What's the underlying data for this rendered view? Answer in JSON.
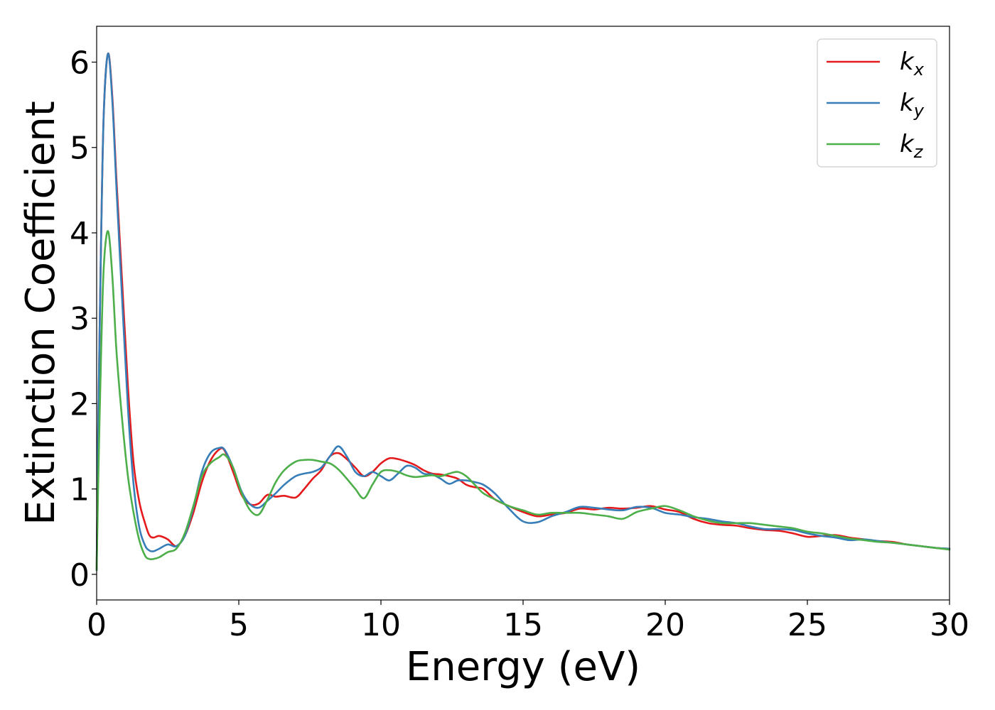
{
  "chart_data": {
    "type": "line",
    "title": "",
    "xlabel": "Energy (eV)",
    "ylabel": "Extinction Coefficient",
    "xlim": [
      0,
      30
    ],
    "ylim": [
      -0.3,
      6.42
    ],
    "x_ticks": [
      0,
      5,
      10,
      15,
      20,
      25,
      30
    ],
    "x_tick_labels": [
      "0",
      "5",
      "10",
      "15",
      "20",
      "25",
      "30"
    ],
    "y_ticks": [
      0,
      1,
      2,
      3,
      4,
      5,
      6
    ],
    "y_tick_labels": [
      "0",
      "1",
      "2",
      "3",
      "4",
      "5",
      "6"
    ],
    "grid": false,
    "legend_position": "top-right",
    "series": [
      {
        "name": "k_x",
        "legend_base": "k",
        "legend_sub": "x",
        "color": "#e41a1c",
        "x": [
          0,
          0.05,
          0.15,
          0.25,
          0.4,
          0.55,
          0.7,
          0.9,
          1.1,
          1.3,
          1.5,
          1.7,
          1.85,
          2.0,
          2.2,
          2.5,
          2.8,
          3.1,
          3.4,
          3.7,
          4.0,
          4.3,
          4.5,
          4.8,
          5.1,
          5.4,
          5.7,
          6.0,
          6.3,
          6.6,
          7.0,
          7.3,
          7.6,
          7.9,
          8.2,
          8.5,
          8.8,
          9.1,
          9.4,
          9.7,
          10.0,
          10.3,
          10.6,
          10.9,
          11.2,
          11.5,
          11.8,
          12.1,
          12.4,
          12.7,
          13.0,
          13.3,
          13.6,
          14.0,
          14.5,
          15.0,
          15.5,
          16.0,
          16.5,
          17.0,
          17.5,
          18.0,
          18.5,
          19.0,
          19.5,
          20.0,
          20.5,
          21.0,
          21.5,
          22.0,
          22.5,
          23.0,
          23.5,
          24.0,
          24.5,
          25.0,
          25.5,
          26.0,
          26.5,
          27.0,
          27.5,
          28.0,
          28.5,
          29.0,
          29.5,
          30.0
        ],
        "values": [
          0.05,
          1.6,
          3.8,
          5.4,
          6.1,
          5.6,
          4.6,
          3.4,
          2.2,
          1.3,
          0.85,
          0.6,
          0.46,
          0.43,
          0.45,
          0.41,
          0.33,
          0.45,
          0.72,
          1.08,
          1.33,
          1.46,
          1.45,
          1.2,
          0.93,
          0.82,
          0.83,
          0.93,
          0.91,
          0.92,
          0.9,
          1.0,
          1.12,
          1.22,
          1.38,
          1.42,
          1.35,
          1.25,
          1.15,
          1.2,
          1.3,
          1.36,
          1.35,
          1.32,
          1.28,
          1.22,
          1.18,
          1.17,
          1.15,
          1.12,
          1.05,
          1.02,
          1.0,
          0.88,
          0.8,
          0.73,
          0.68,
          0.7,
          0.72,
          0.77,
          0.76,
          0.78,
          0.77,
          0.78,
          0.8,
          0.76,
          0.73,
          0.65,
          0.6,
          0.58,
          0.57,
          0.54,
          0.52,
          0.51,
          0.48,
          0.44,
          0.45,
          0.46,
          0.43,
          0.41,
          0.39,
          0.38,
          0.35,
          0.33,
          0.31,
          0.3
        ]
      },
      {
        "name": "k_y",
        "legend_base": "k",
        "legend_sub": "y",
        "color": "#377eb8",
        "x": [
          0,
          0.05,
          0.15,
          0.25,
          0.4,
          0.55,
          0.7,
          0.9,
          1.1,
          1.3,
          1.5,
          1.7,
          1.85,
          2.0,
          2.2,
          2.5,
          2.8,
          3.1,
          3.4,
          3.7,
          4.0,
          4.3,
          4.5,
          4.8,
          5.1,
          5.4,
          5.7,
          6.0,
          6.3,
          6.6,
          7.0,
          7.3,
          7.6,
          7.9,
          8.2,
          8.5,
          8.8,
          9.1,
          9.4,
          9.7,
          10.0,
          10.3,
          10.6,
          10.9,
          11.2,
          11.5,
          11.8,
          12.1,
          12.4,
          12.7,
          13.0,
          13.3,
          13.6,
          14.0,
          14.5,
          15.0,
          15.5,
          16.0,
          16.5,
          17.0,
          17.5,
          18.0,
          18.5,
          19.0,
          19.5,
          20.0,
          20.5,
          21.0,
          21.5,
          22.0,
          22.5,
          23.0,
          23.5,
          24.0,
          24.5,
          25.0,
          25.5,
          26.0,
          26.5,
          27.0,
          27.5,
          28.0,
          28.5,
          29.0,
          29.5,
          30.0
        ],
        "values": [
          0.05,
          1.6,
          3.8,
          5.4,
          6.1,
          5.55,
          4.5,
          3.2,
          1.95,
          1.05,
          0.55,
          0.34,
          0.28,
          0.27,
          0.3,
          0.35,
          0.33,
          0.45,
          0.78,
          1.2,
          1.42,
          1.48,
          1.46,
          1.25,
          0.97,
          0.82,
          0.78,
          0.86,
          0.95,
          1.05,
          1.15,
          1.18,
          1.2,
          1.25,
          1.38,
          1.5,
          1.38,
          1.2,
          1.15,
          1.2,
          1.15,
          1.1,
          1.18,
          1.27,
          1.25,
          1.18,
          1.17,
          1.12,
          1.06,
          1.1,
          1.1,
          1.08,
          1.05,
          0.95,
          0.77,
          0.62,
          0.61,
          0.68,
          0.73,
          0.79,
          0.78,
          0.76,
          0.75,
          0.79,
          0.78,
          0.72,
          0.7,
          0.67,
          0.65,
          0.62,
          0.6,
          0.56,
          0.53,
          0.53,
          0.52,
          0.48,
          0.45,
          0.43,
          0.4,
          0.41,
          0.39,
          0.37,
          0.35,
          0.33,
          0.31,
          0.3
        ]
      },
      {
        "name": "k_z",
        "legend_base": "k",
        "legend_sub": "z",
        "color": "#4daf4a",
        "x": [
          0,
          0.05,
          0.15,
          0.25,
          0.4,
          0.55,
          0.7,
          0.9,
          1.1,
          1.3,
          1.5,
          1.7,
          1.85,
          2.0,
          2.2,
          2.5,
          2.8,
          3.1,
          3.4,
          3.7,
          4.0,
          4.3,
          4.5,
          4.8,
          5.1,
          5.4,
          5.7,
          6.0,
          6.3,
          6.6,
          7.0,
          7.3,
          7.6,
          7.9,
          8.2,
          8.5,
          8.8,
          9.1,
          9.4,
          9.7,
          10.0,
          10.3,
          10.6,
          10.9,
          11.2,
          11.5,
          11.8,
          12.1,
          12.4,
          12.7,
          13.0,
          13.3,
          13.6,
          14.0,
          14.5,
          15.0,
          15.5,
          16.0,
          16.5,
          17.0,
          17.5,
          18.0,
          18.5,
          19.0,
          19.5,
          20.0,
          20.5,
          21.0,
          21.5,
          22.0,
          22.5,
          23.0,
          23.5,
          24.0,
          24.5,
          25.0,
          25.5,
          26.0,
          26.5,
          27.0,
          27.5,
          28.0,
          28.5,
          29.0,
          29.5,
          30.0
        ],
        "values": [
          0.05,
          1.0,
          2.5,
          3.6,
          4.02,
          3.5,
          2.6,
          1.8,
          1.15,
          0.72,
          0.4,
          0.22,
          0.18,
          0.18,
          0.2,
          0.26,
          0.3,
          0.48,
          0.8,
          1.15,
          1.3,
          1.37,
          1.4,
          1.25,
          0.95,
          0.75,
          0.7,
          0.87,
          1.08,
          1.22,
          1.32,
          1.34,
          1.34,
          1.32,
          1.3,
          1.23,
          1.12,
          1.0,
          0.89,
          1.05,
          1.2,
          1.22,
          1.2,
          1.16,
          1.14,
          1.15,
          1.16,
          1.15,
          1.18,
          1.2,
          1.15,
          1.05,
          0.95,
          0.88,
          0.8,
          0.75,
          0.7,
          0.72,
          0.72,
          0.72,
          0.7,
          0.68,
          0.65,
          0.73,
          0.77,
          0.8,
          0.75,
          0.68,
          0.63,
          0.6,
          0.6,
          0.6,
          0.58,
          0.56,
          0.54,
          0.5,
          0.48,
          0.45,
          0.42,
          0.4,
          0.38,
          0.37,
          0.35,
          0.33,
          0.31,
          0.29
        ]
      }
    ]
  }
}
